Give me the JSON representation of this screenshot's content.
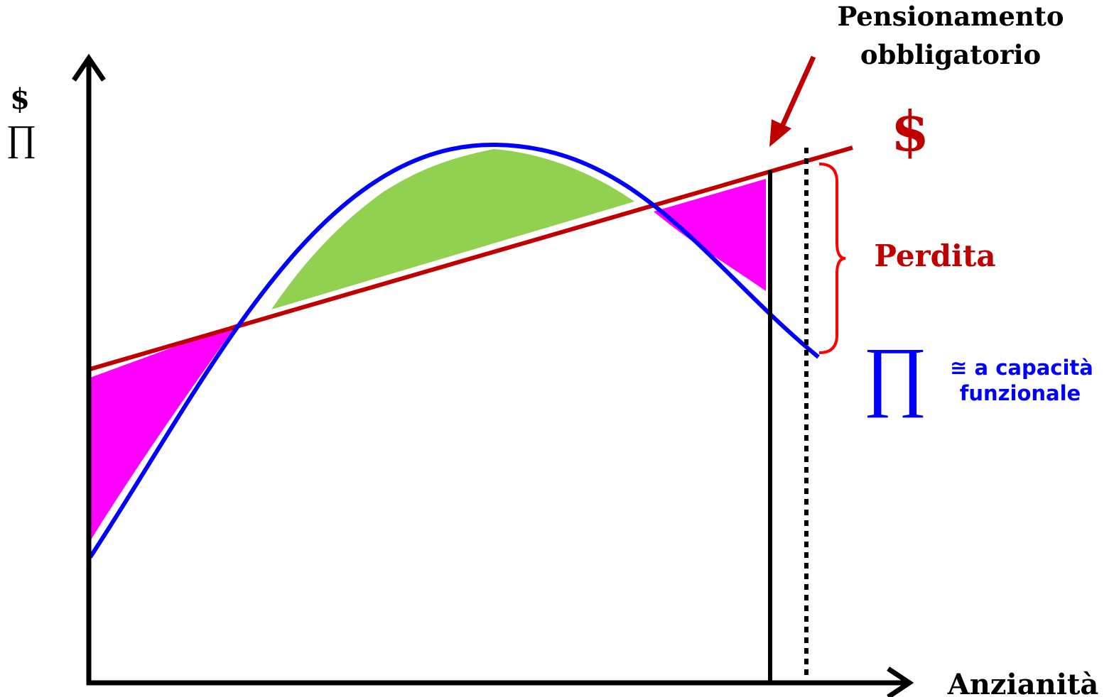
{
  "labels": {
    "y_axis_dollar": "$",
    "y_axis_pi": "∏",
    "x_axis": "Anzianità",
    "retirement_line1": "Pensionamento",
    "retirement_line2": "obbligatorio",
    "dollar_curve": "$",
    "loss": "Perdita",
    "pi_curve": "∏",
    "capacity_line1": "≅ a capacità",
    "capacity_line2": "funzionale"
  },
  "colors": {
    "axis": "#000000",
    "pi_curve": "#0000ff",
    "dollar_line": "#c00000",
    "gain_region": "#92d050",
    "loss_region": "#ff00ff",
    "brace": "#ff0000",
    "capacity_text": "#0000ff"
  }
}
